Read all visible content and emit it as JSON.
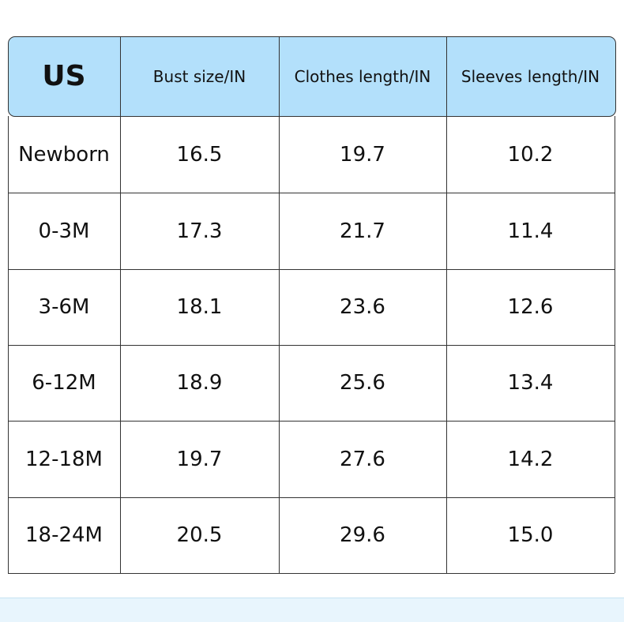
{
  "table": {
    "header": [
      "US",
      "Bust size/IN",
      "Clothes length/IN",
      "Sleeves length/IN"
    ],
    "rows": [
      [
        "Newborn",
        "16.5",
        "19.7",
        "10.2"
      ],
      [
        "0-3M",
        "17.3",
        "21.7",
        "11.4"
      ],
      [
        "3-6M",
        "18.1",
        "23.6",
        "12.6"
      ],
      [
        "6-12M",
        "18.9",
        "25.6",
        "13.4"
      ],
      [
        "12-18M",
        "19.7",
        "27.6",
        "14.2"
      ],
      [
        "18-24M",
        "20.5",
        "29.6",
        "15.0"
      ]
    ]
  }
}
